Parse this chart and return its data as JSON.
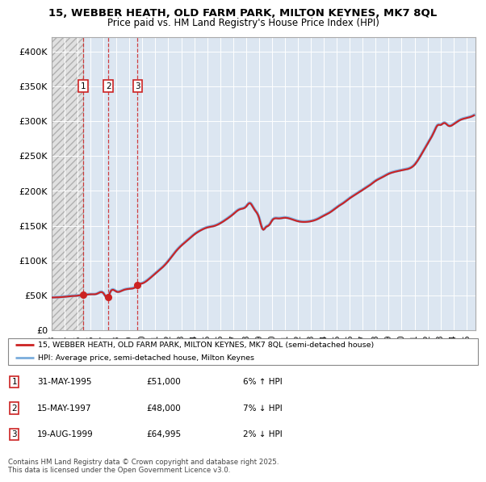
{
  "title1": "15, WEBBER HEATH, OLD FARM PARK, MILTON KEYNES, MK7 8QL",
  "title2": "Price paid vs. HM Land Registry's House Price Index (HPI)",
  "purchases": [
    {
      "date": 1995.42,
      "price": 51000,
      "label": "1"
    },
    {
      "date": 1997.37,
      "price": 48000,
      "label": "2"
    },
    {
      "date": 1999.63,
      "price": 64995,
      "label": "3"
    }
  ],
  "purchase_details": [
    {
      "num": "1",
      "date": "31-MAY-1995",
      "price": "£51,000",
      "change": "6% ↑ HPI"
    },
    {
      "num": "2",
      "date": "15-MAY-1997",
      "price": "£48,000",
      "change": "7% ↓ HPI"
    },
    {
      "num": "3",
      "date": "19-AUG-1999",
      "price": "£64,995",
      "change": "2% ↓ HPI"
    }
  ],
  "hpi_line_color": "#7aacdc",
  "price_line_color": "#cc2222",
  "marker_color": "#cc2222",
  "dashed_line_color": "#cc2222",
  "plot_bg_color": "#dce6f1",
  "hatch_bg_color": "#e0e0e0",
  "ylim": [
    0,
    420000
  ],
  "yticks": [
    0,
    50000,
    100000,
    150000,
    200000,
    250000,
    300000,
    350000,
    400000
  ],
  "ytick_labels": [
    "£0",
    "£50K",
    "£100K",
    "£150K",
    "£200K",
    "£250K",
    "£300K",
    "£350K",
    "£400K"
  ],
  "xmin": 1993.0,
  "xmax": 2025.7,
  "legend_line1": "15, WEBBER HEATH, OLD FARM PARK, MILTON KEYNES, MK7 8QL (semi-detached house)",
  "legend_line2": "HPI: Average price, semi-detached house, Milton Keynes",
  "footer1": "Contains HM Land Registry data © Crown copyright and database right 2025.",
  "footer2": "This data is licensed under the Open Government Licence v3.0."
}
